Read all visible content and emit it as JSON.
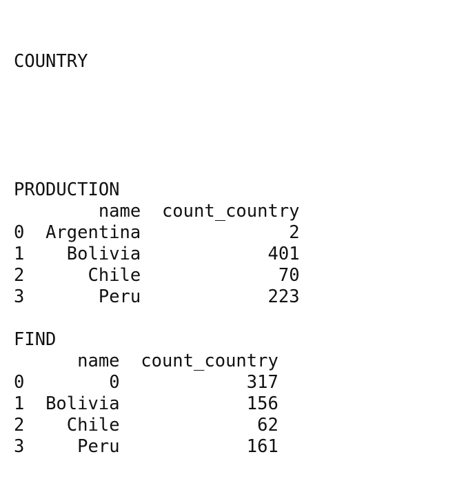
{
  "heading": "COUNTRY",
  "tables": [
    {
      "title": "PRODUCTION",
      "columns": [
        "name",
        "count_country"
      ],
      "rows": [
        {
          "index": "0",
          "name": "Argentina",
          "count_country": "2"
        },
        {
          "index": "1",
          "name": "Bolivia",
          "count_country": "401"
        },
        {
          "index": "2",
          "name": "Chile",
          "count_country": "70"
        },
        {
          "index": "3",
          "name": "Peru",
          "count_country": "223"
        }
      ]
    },
    {
      "title": "FIND",
      "columns": [
        "name",
        "count_country"
      ],
      "rows": [
        {
          "index": "0",
          "name": "0",
          "count_country": "317"
        },
        {
          "index": "1",
          "name": "Bolivia",
          "count_country": "156"
        },
        {
          "index": "2",
          "name": "Chile",
          "count_country": "62"
        },
        {
          "index": "3",
          "name": "Peru",
          "count_country": "161"
        }
      ]
    }
  ]
}
